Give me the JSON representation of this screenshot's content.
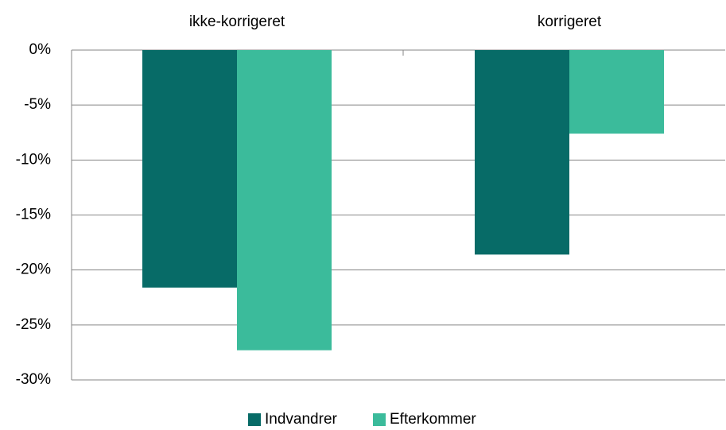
{
  "chart_data": {
    "type": "bar",
    "categories": [
      "ikke-korrigeret",
      "korrigeret"
    ],
    "series": [
      {
        "name": "Indvandrer",
        "color": "#076b67",
        "values": [
          -21.6,
          -18.6
        ]
      },
      {
        "name": "Efterkommer",
        "color": "#3bbb9b",
        "values": [
          -27.3,
          -7.6
        ]
      }
    ],
    "ylim": [
      -30,
      0
    ],
    "yticks": [
      {
        "value": 0,
        "label": "0%"
      },
      {
        "value": -5,
        "label": "-5%"
      },
      {
        "value": -10,
        "label": "-10%"
      },
      {
        "value": -15,
        "label": "-15%"
      },
      {
        "value": -20,
        "label": "-20%"
      },
      {
        "value": -25,
        "label": "-25%"
      },
      {
        "value": -30,
        "label": "-30%"
      }
    ],
    "grid": true,
    "legend": "bottom"
  }
}
